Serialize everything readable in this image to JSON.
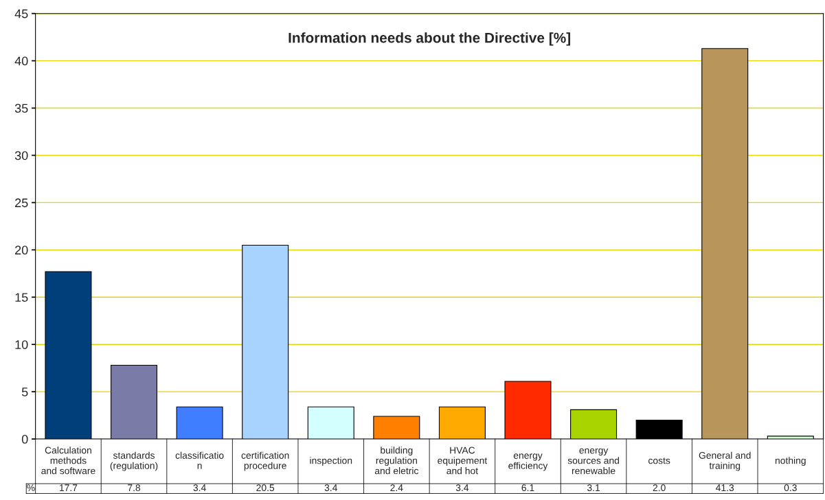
{
  "chart_data": {
    "type": "bar",
    "title": "Information needs about the Directive [%]",
    "categories": [
      "Calculation\nmethods\nand software",
      "standards\n(regulation)",
      "classificatio\nn",
      "certification\nprocedure",
      "inspection",
      "building\nregulation\nand eletric",
      "HVAC\nequipement\nand hot",
      "energy\nefficiency",
      "energy\nsources and\nrenewable",
      "costs",
      "General and\ntraining",
      "nothing"
    ],
    "series": [
      {
        "name": "%",
        "values": [
          17.7,
          7.8,
          3.4,
          20.5,
          3.4,
          2.4,
          3.4,
          6.1,
          3.1,
          2.0,
          41.3,
          0.3
        ],
        "value_labels": [
          "17.7",
          "7.8",
          "3.4",
          "20.5",
          "3.4",
          "2.4",
          "3.4",
          "6.1",
          "3.1",
          "2.0",
          "41.3",
          "0.3"
        ],
        "colors": [
          "#003f7a",
          "#7b7ba8",
          "#3f7fff",
          "#a8d3ff",
          "#d3ffff",
          "#ff7f00",
          "#ffaa00",
          "#ff2a00",
          "#aad400",
          "#000000",
          "#b8955a",
          "#d3ffd3"
        ]
      }
    ],
    "ylim": [
      0,
      45
    ],
    "yticks": [
      0,
      5,
      10,
      15,
      20,
      25,
      30,
      35,
      40,
      45
    ],
    "grid": "y"
  }
}
